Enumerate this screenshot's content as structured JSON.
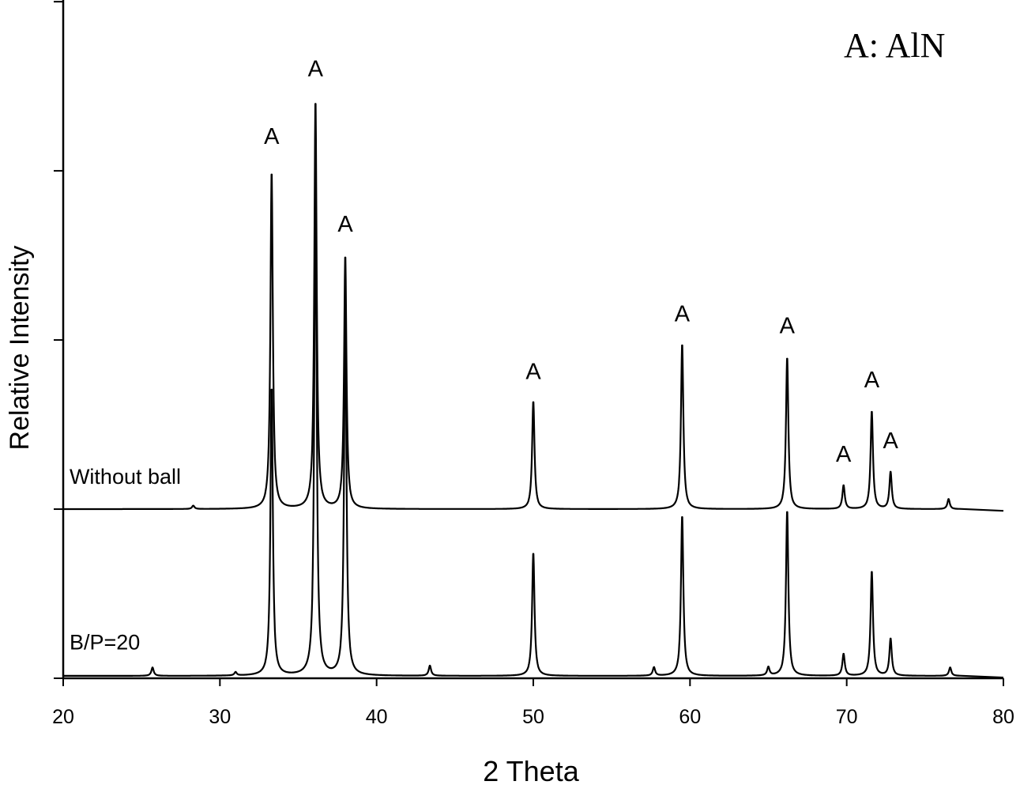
{
  "chart_data": {
    "type": "line",
    "title": "A: AlN",
    "xlabel": "2 Theta",
    "ylabel": "Relative Intensity",
    "xlim": [
      20,
      80
    ],
    "ylim": [
      0,
      4.01
    ],
    "xticks": [
      20,
      30,
      40,
      50,
      60,
      70,
      80
    ],
    "yticks": [
      0,
      1,
      2,
      3,
      4
    ],
    "grid": false,
    "series": [
      {
        "name": "Without ball",
        "offset": 1.0,
        "label_pos": [
          20.3,
          1.15
        ],
        "peaks": [
          [
            28.3,
            0.02
          ],
          [
            33.3,
            2.0
          ],
          [
            36.1,
            2.42
          ],
          [
            38.0,
            1.5
          ],
          [
            50.0,
            0.64
          ],
          [
            59.5,
            0.98
          ],
          [
            66.2,
            0.9
          ],
          [
            69.8,
            0.14
          ],
          [
            71.6,
            0.58
          ],
          [
            72.8,
            0.22
          ],
          [
            76.5,
            0.06
          ]
        ]
      },
      {
        "name": "B/P=20",
        "offset": 0.014,
        "label_pos": [
          20.3,
          0.17
        ],
        "peaks": [
          [
            25.7,
            0.05
          ],
          [
            31.0,
            0.02
          ],
          [
            33.3,
            1.71
          ],
          [
            36.1,
            2.94
          ],
          [
            38.0,
            2.17
          ],
          [
            43.4,
            0.06
          ],
          [
            50.0,
            0.73
          ],
          [
            57.7,
            0.05
          ],
          [
            59.5,
            0.95
          ],
          [
            65.0,
            0.05
          ],
          [
            66.2,
            0.98
          ],
          [
            69.8,
            0.13
          ],
          [
            71.6,
            0.62
          ],
          [
            72.8,
            0.22
          ],
          [
            76.6,
            0.05
          ]
        ]
      }
    ],
    "annotations": [
      {
        "text": "A",
        "x": 33.3,
        "y": 3.16
      },
      {
        "text": "A",
        "x": 36.1,
        "y": 3.56
      },
      {
        "text": "A",
        "x": 38.0,
        "y": 2.64
      },
      {
        "text": "A",
        "x": 50.0,
        "y": 1.77
      },
      {
        "text": "A",
        "x": 59.5,
        "y": 2.11
      },
      {
        "text": "A",
        "x": 66.2,
        "y": 2.04
      },
      {
        "text": "A",
        "x": 69.8,
        "y": 1.28
      },
      {
        "text": "A",
        "x": 71.6,
        "y": 1.72
      },
      {
        "text": "A",
        "x": 72.8,
        "y": 1.36
      }
    ]
  }
}
